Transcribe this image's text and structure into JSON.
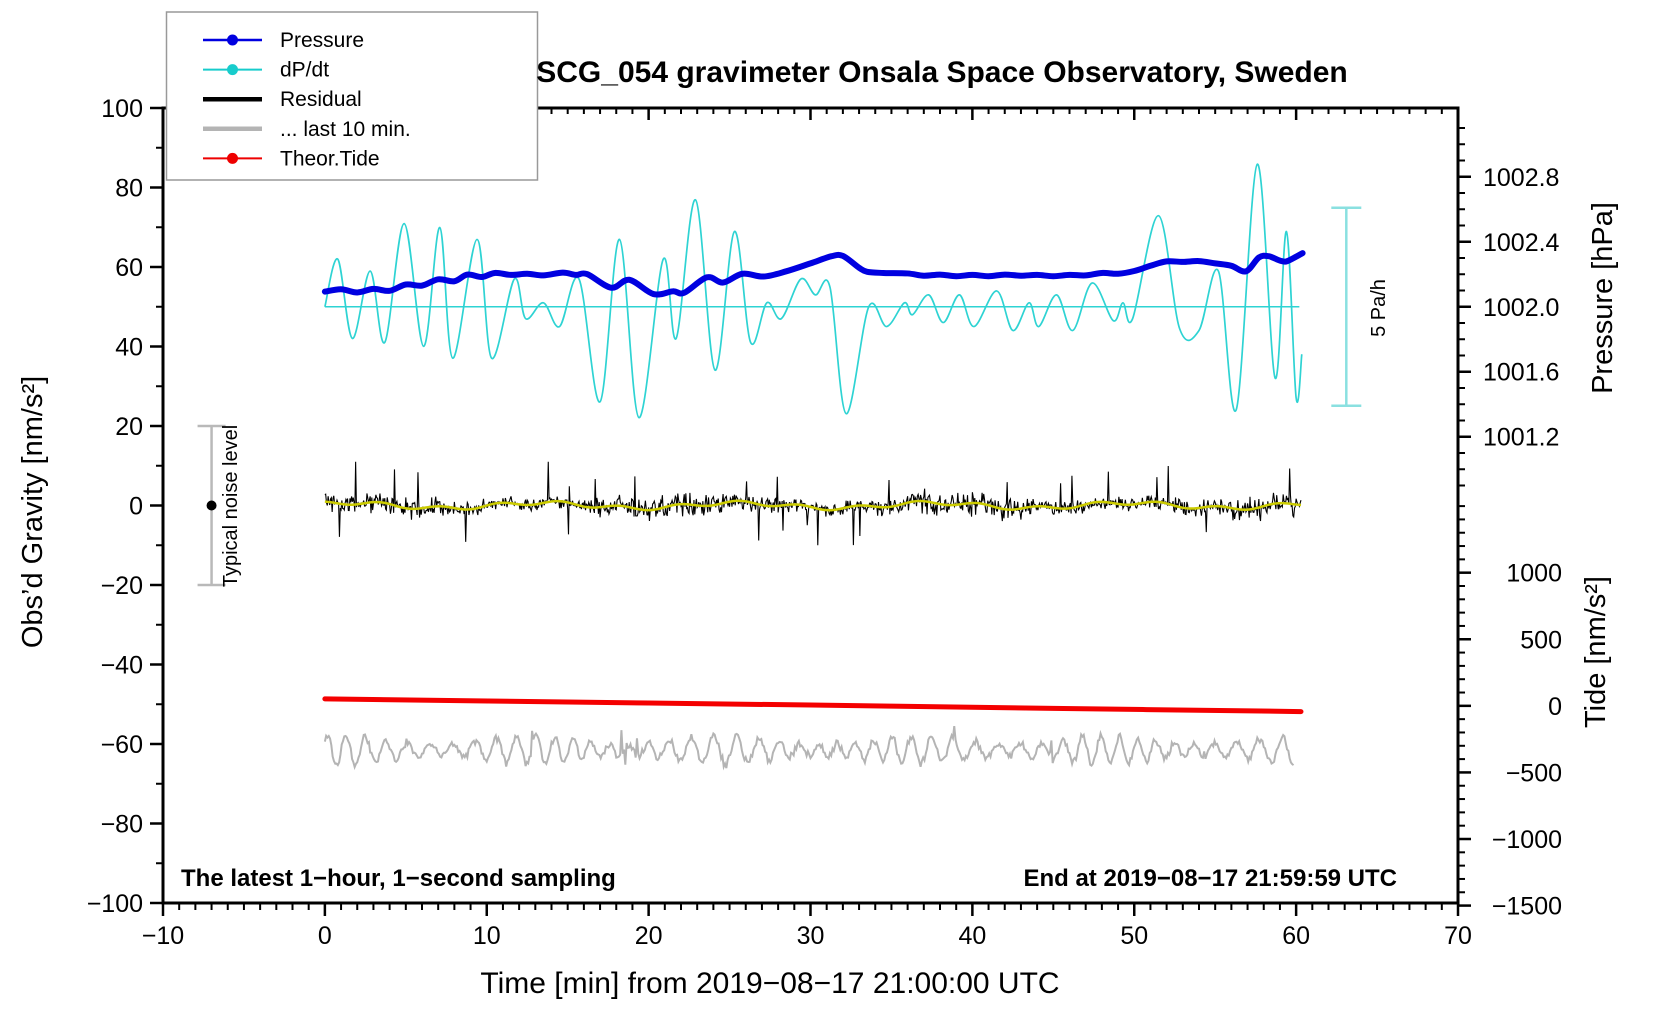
{
  "chart_data": {
    "type": "line",
    "title": "SCG_054 gravimeter Onsala Space Observatory, Sweden",
    "notes": {
      "sampling": "The latest 1−hour, 1−second sampling",
      "end": "End at 2019−08−17 21:59:59 UTC"
    },
    "x_axis": {
      "label": "Time [min] from 2019−08−17 21:00:00 UTC",
      "range": [
        -10,
        70
      ],
      "tick_values": [
        -10,
        0,
        10,
        20,
        30,
        40,
        50,
        60,
        70
      ],
      "tick_labels": [
        "−10",
        "0",
        "10",
        "20",
        "30",
        "40",
        "50",
        "60",
        "70"
      ],
      "minor_step": 1
    },
    "gravity_axis": {
      "label": "Obs’d Gravity [nm/s²]",
      "range": [
        -100,
        100
      ],
      "tick_values": [
        100,
        80,
        60,
        40,
        20,
        0,
        -20,
        -40,
        -60,
        -80,
        -100
      ],
      "tick_labels": [
        "100",
        "80",
        "60",
        "40",
        "20",
        "0",
        "−20",
        "−40",
        "−60",
        "−80",
        "−100"
      ],
      "minor_step": 10
    },
    "pressure_axis": {
      "label": "Pressure [hPa]",
      "tick_values": [
        1002.8,
        1002.4,
        1002.0,
        1001.6,
        1001.2
      ],
      "tick_labels": [
        "1002.8",
        "1002.4",
        "1002.0",
        "1001.6",
        "1001.2"
      ],
      "minor_step": 0.1,
      "gravity_at_1002": 50,
      "gravity_units_per_hpa": 40.88
    },
    "tide_axis": {
      "label": "Tide [nm/s²]",
      "tick_values": [
        1000,
        500,
        0,
        -500,
        -1000,
        -1500
      ],
      "tick_labels": [
        "1000",
        "500",
        "0",
        "−500",
        "−1000",
        "−1500"
      ],
      "minor_step": 100,
      "gravity_at_tide0": -50.4,
      "gravity_units_per_500": 16.75
    },
    "series": {
      "pressure": {
        "name": "Pressure",
        "units": "hPa",
        "color": "#0000e0",
        "width": 6,
        "points": [
          [
            0,
            1002.093
          ],
          [
            1,
            1002.108
          ],
          [
            2,
            1002.088
          ],
          [
            3,
            1002.11
          ],
          [
            4,
            1002.098
          ],
          [
            5,
            1002.137
          ],
          [
            6,
            1002.13
          ],
          [
            7,
            1002.169
          ],
          [
            8,
            1002.157
          ],
          [
            8.8,
            1002.198
          ],
          [
            9.7,
            1002.183
          ],
          [
            10.5,
            1002.208
          ],
          [
            11.5,
            1002.196
          ],
          [
            12.5,
            1002.203
          ],
          [
            13.5,
            1002.193
          ],
          [
            14.7,
            1002.21
          ],
          [
            15.5,
            1002.196
          ],
          [
            16.2,
            1002.201
          ],
          [
            17.7,
            1002.117
          ],
          [
            18.8,
            1002.166
          ],
          [
            20.3,
            1002.078
          ],
          [
            21.5,
            1002.095
          ],
          [
            22.2,
            1002.086
          ],
          [
            23.6,
            1002.181
          ],
          [
            24.6,
            1002.149
          ],
          [
            25.8,
            1002.203
          ],
          [
            27.1,
            1002.186
          ],
          [
            28.5,
            1002.218
          ],
          [
            30,
            1002.267
          ],
          [
            31.3,
            1002.311
          ],
          [
            32,
            1002.313
          ],
          [
            33,
            1002.24
          ],
          [
            33.5,
            1002.215
          ],
          [
            34.5,
            1002.208
          ],
          [
            36,
            1002.205
          ],
          [
            37,
            1002.191
          ],
          [
            38,
            1002.198
          ],
          [
            39,
            1002.188
          ],
          [
            40,
            1002.196
          ],
          [
            41,
            1002.188
          ],
          [
            42,
            1002.198
          ],
          [
            43,
            1002.191
          ],
          [
            44,
            1002.196
          ],
          [
            45,
            1002.188
          ],
          [
            46,
            1002.196
          ],
          [
            47,
            1002.193
          ],
          [
            48,
            1002.208
          ],
          [
            49,
            1002.203
          ],
          [
            50,
            1002.22
          ],
          [
            51,
            1002.252
          ],
          [
            52,
            1002.279
          ],
          [
            53,
            1002.276
          ],
          [
            54,
            1002.281
          ],
          [
            55,
            1002.267
          ],
          [
            56,
            1002.252
          ],
          [
            56.9,
            1002.218
          ],
          [
            57.7,
            1002.303
          ],
          [
            58.3,
            1002.311
          ],
          [
            59,
            1002.284
          ],
          [
            59.4,
            1002.279
          ],
          [
            60,
            1002.308
          ],
          [
            60.4,
            1002.33
          ]
        ]
      },
      "dpdt": {
        "name": "dP/dt",
        "units": "Pa/h",
        "color": "#2ed3d3",
        "width": 1.7,
        "gravity_at_zero": 50,
        "gravity_units_per_pa_per_h": 9.96,
        "zero_line": {
          "x_start": 0,
          "x_end": 60.2
        },
        "points": [
          [
            0,
            0
          ],
          [
            0.8,
            1.2
          ],
          [
            1.7,
            -0.8
          ],
          [
            2.8,
            0.9
          ],
          [
            3.7,
            -0.9
          ],
          [
            4.9,
            2.1
          ],
          [
            6.1,
            -1.0
          ],
          [
            7.1,
            2.0
          ],
          [
            7.9,
            -1.3
          ],
          [
            9.4,
            1.7
          ],
          [
            10.3,
            -1.3
          ],
          [
            11.7,
            0.7
          ],
          [
            12.4,
            -0.3
          ],
          [
            13.5,
            0.1
          ],
          [
            14.5,
            -0.5
          ],
          [
            15.7,
            0.7
          ],
          [
            17.0,
            -2.4
          ],
          [
            18.2,
            1.7
          ],
          [
            19.4,
            -2.8
          ],
          [
            20.9,
            1.2
          ],
          [
            21.7,
            -0.8
          ],
          [
            22.9,
            2.7
          ],
          [
            24.1,
            -1.6
          ],
          [
            25.3,
            1.9
          ],
          [
            26.3,
            -0.9
          ],
          [
            27.3,
            0.1
          ],
          [
            28.2,
            -0.3
          ],
          [
            29.4,
            0.7
          ],
          [
            30.3,
            0.3
          ],
          [
            31.2,
            0.5
          ],
          [
            32.2,
            -2.7
          ],
          [
            33.6,
            0
          ],
          [
            34.7,
            -0.5
          ],
          [
            35.8,
            0.1
          ],
          [
            36.3,
            -0.2
          ],
          [
            37.3,
            0.3
          ],
          [
            38.2,
            -0.4
          ],
          [
            39.2,
            0.3
          ],
          [
            40.1,
            -0.5
          ],
          [
            41.5,
            0.4
          ],
          [
            42.5,
            -0.6
          ],
          [
            43.5,
            0.1
          ],
          [
            44.1,
            -0.5
          ],
          [
            45.2,
            0.3
          ],
          [
            46.2,
            -0.6
          ],
          [
            47.4,
            0.6
          ],
          [
            48.7,
            -0.35
          ],
          [
            49.3,
            0.1
          ],
          [
            49.9,
            -0.3
          ],
          [
            51.5,
            2.3
          ],
          [
            52.8,
            -0.55
          ],
          [
            54,
            -0.6
          ],
          [
            55.2,
            0.9
          ],
          [
            56.3,
            -2.6
          ],
          [
            57.6,
            3.6
          ],
          [
            58.7,
            -1.8
          ],
          [
            59.4,
            1.9
          ],
          [
            60,
            -2.3
          ],
          [
            60.35,
            -1.2
          ]
        ]
      },
      "residual": {
        "name": "Residual",
        "units": "nm/s²",
        "color": "#000000",
        "center_gravity": 0,
        "typical_amplitude": 4.5,
        "spike_amplitude": 10.5,
        "x_start": 0,
        "x_end": 60.3,
        "seed": 20190817,
        "smooth_line": {
          "color": "#cccc00",
          "width": 2.5
        }
      },
      "residual_last10": {
        "name": "... last 10 min.",
        "units": "nm/s²",
        "color": "#b4b4b4",
        "width": 2,
        "center_gravity": -61.5,
        "amplitude": 2.5,
        "x_start": 0,
        "x_end": 59.9,
        "seed": 4242
      },
      "tide": {
        "name": "Theor.Tide",
        "units": "nm/s²",
        "color": "#f40000",
        "width": 5,
        "points": [
          [
            0,
            52
          ],
          [
            15,
            29
          ],
          [
            30,
            6
          ],
          [
            45,
            -19
          ],
          [
            60.3,
            -43
          ]
        ]
      }
    },
    "annotations": {
      "noise_bar": {
        "label": "Typical noise level",
        "x": -7,
        "gravity_range": [
          -20,
          20
        ],
        "dot_gravity": 0,
        "color": "#b9b9b9"
      },
      "scale_bar": {
        "label": "5 Pa/h",
        "x": 63.1,
        "pa_per_h_range": [
          -2.5,
          2.5
        ],
        "color": "#8ae0e0"
      }
    }
  },
  "legend": {
    "items": [
      {
        "label": "Pressure",
        "color": "#0000e0",
        "marker": "dot",
        "line_width": 2.5
      },
      {
        "label": "dP/dt",
        "color": "#17cccc",
        "marker": "dot",
        "line_width": 2
      },
      {
        "label": "Residual",
        "color": "#000000",
        "marker": "none",
        "line_width": 4.5
      },
      {
        "label": "... last 10 min.",
        "color": "#b4b4b4",
        "marker": "none",
        "line_width": 4.5
      },
      {
        "label": "Theor.Tide",
        "color": "#ee0000",
        "marker": "dot",
        "line_width": 2
      }
    ]
  }
}
